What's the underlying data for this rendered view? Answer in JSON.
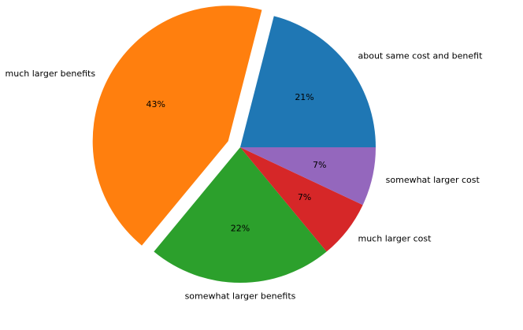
{
  "chart_data": {
    "type": "pie",
    "title": "",
    "start_angle_deg": 0,
    "direction": "counterclockwise",
    "slices": [
      {
        "label": "about same cost and benefit",
        "value": 21,
        "pct_label": "21%",
        "color": "#1f77b4",
        "explode": 0
      },
      {
        "label": "much larger benefits",
        "value": 43,
        "pct_label": "43%",
        "color": "#ff7f0e",
        "explode": 0.1
      },
      {
        "label": "somewhat larger benefits",
        "value": 22,
        "pct_label": "22%",
        "color": "#2ca02c",
        "explode": 0
      },
      {
        "label": "much larger cost",
        "value": 7,
        "pct_label": "7%",
        "color": "#d62728",
        "explode": 0
      },
      {
        "label": "somewhat larger cost",
        "value": 7,
        "pct_label": "7%",
        "color": "#9467bd",
        "explode": 0
      }
    ],
    "legend": "none"
  }
}
